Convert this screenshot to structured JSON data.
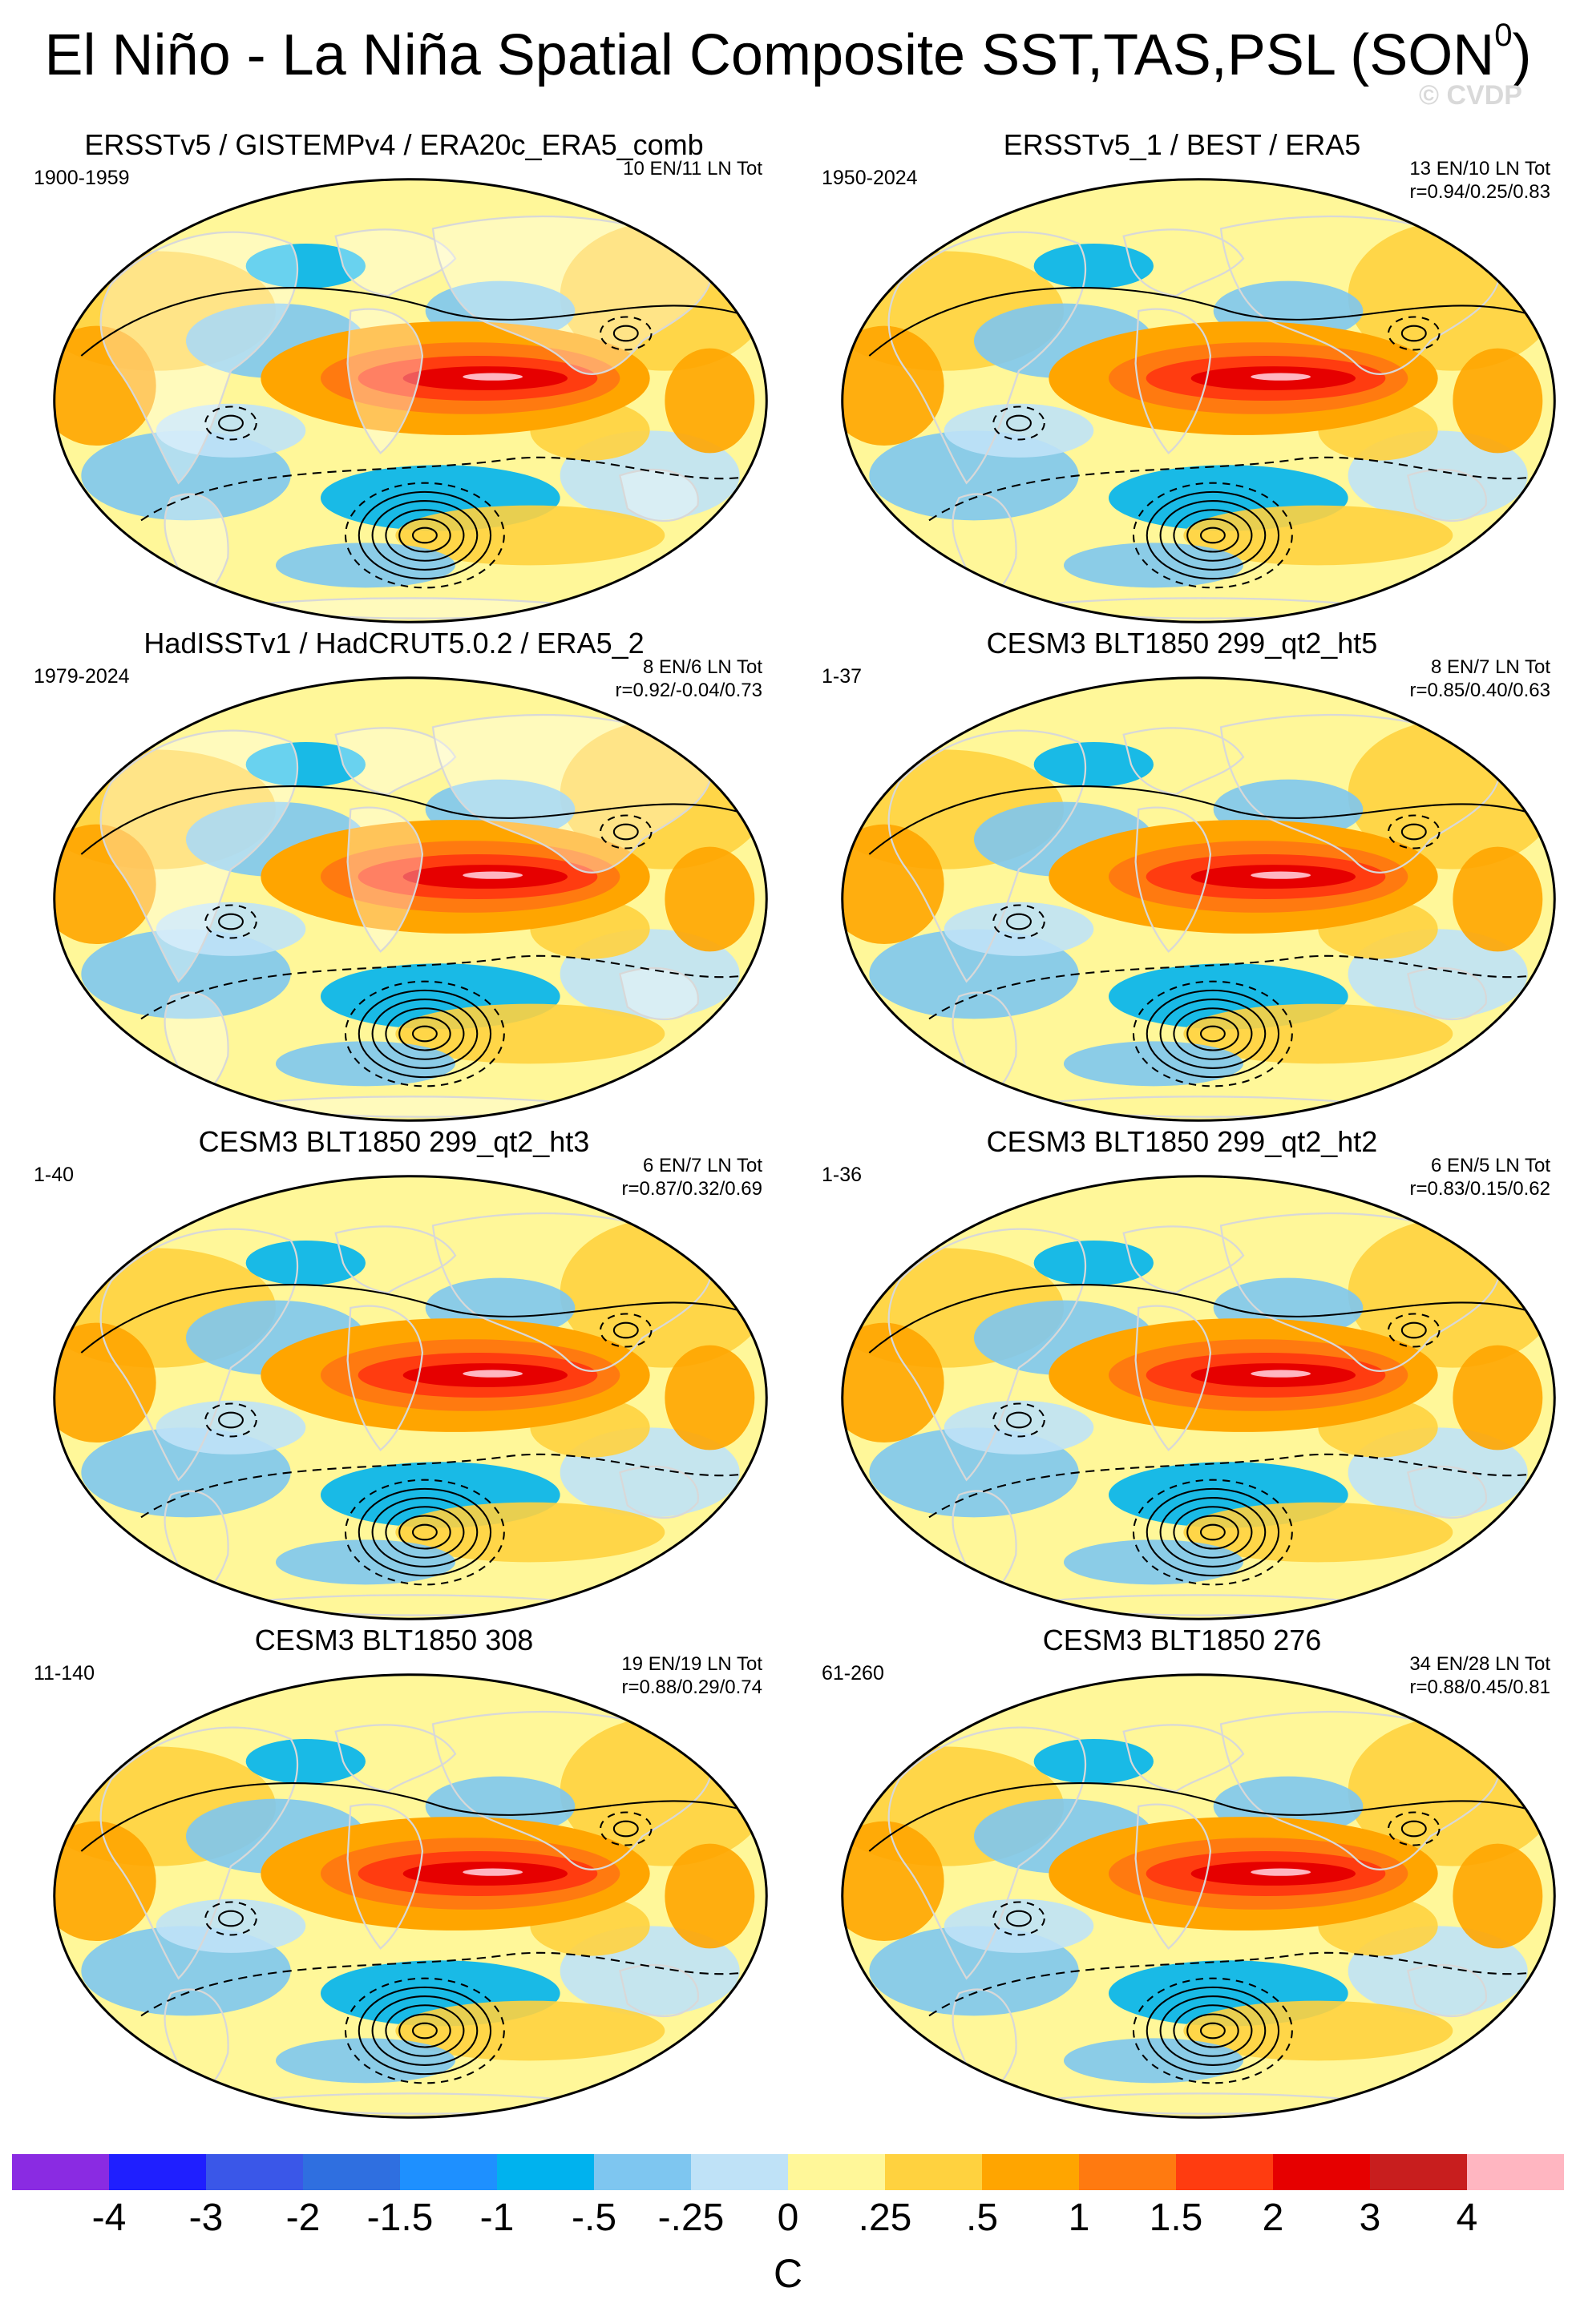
{
  "title": "El Niño - La Niña Spatial Composite SST,TAS,PSL (SON",
  "title_sup": "0",
  "title_close": ")",
  "watermark": "© CVDP",
  "panels": [
    {
      "title": "ERSSTv5 / GISTEMPv4 / ERA20c_ERA5_comb",
      "years": "1900-1959",
      "stats": [
        "10 EN/11 LN Tot"
      ],
      "land_gaps": true
    },
    {
      "title": "ERSSTv5_1 / BEST / ERA5",
      "years": "1950-2024",
      "stats": [
        "13 EN/10 LN Tot",
        "r=0.94/0.25/0.83"
      ],
      "land_gaps": false
    },
    {
      "title": "HadISSTv1 / HadCRUT5.0.2 / ERA5_2",
      "years": "1979-2024",
      "stats": [
        "8 EN/6 LN Tot",
        "r=0.92/-0.04/0.73"
      ],
      "land_gaps": true
    },
    {
      "title": "CESM3 BLT1850 299_qt2_ht5",
      "years": "1-37",
      "stats": [
        "8 EN/7 LN Tot",
        "r=0.85/0.40/0.63"
      ],
      "land_gaps": false
    },
    {
      "title": "CESM3 BLT1850 299_qt2_ht3",
      "years": "1-40",
      "stats": [
        "6 EN/7 LN Tot",
        "r=0.87/0.32/0.69"
      ],
      "land_gaps": false
    },
    {
      "title": "CESM3 BLT1850 299_qt2_ht2",
      "years": "1-36",
      "stats": [
        "6 EN/5 LN Tot",
        "r=0.83/0.15/0.62"
      ],
      "land_gaps": false
    },
    {
      "title": "CESM3 BLT1850 308",
      "years": "11-140",
      "stats": [
        "19 EN/19 LN Tot",
        "r=0.88/0.29/0.74"
      ],
      "land_gaps": false
    },
    {
      "title": "CESM3 BLT1850 276",
      "years": "61-260",
      "stats": [
        "34 EN/28 LN Tot",
        "r=0.88/0.45/0.81"
      ],
      "land_gaps": false
    }
  ],
  "colorbar": {
    "colors": [
      "#8a2be2",
      "#1f1fff",
      "#3a57e8",
      "#2f6fe0",
      "#1e90ff",
      "#00b2ee",
      "#7ec6f0",
      "#bfe2f7",
      "#fff799",
      "#ffd23f",
      "#ffa500",
      "#ff7a10",
      "#ff3c10",
      "#e60000",
      "#c81e1e",
      "#ffb6c1"
    ],
    "labels": [
      "-4",
      "-3",
      "-2",
      "-1.5",
      "-1",
      "-.5",
      "-.25",
      "0",
      ".25",
      ".5",
      "1",
      "1.5",
      "2",
      "3",
      "4"
    ],
    "unit": "C"
  }
}
